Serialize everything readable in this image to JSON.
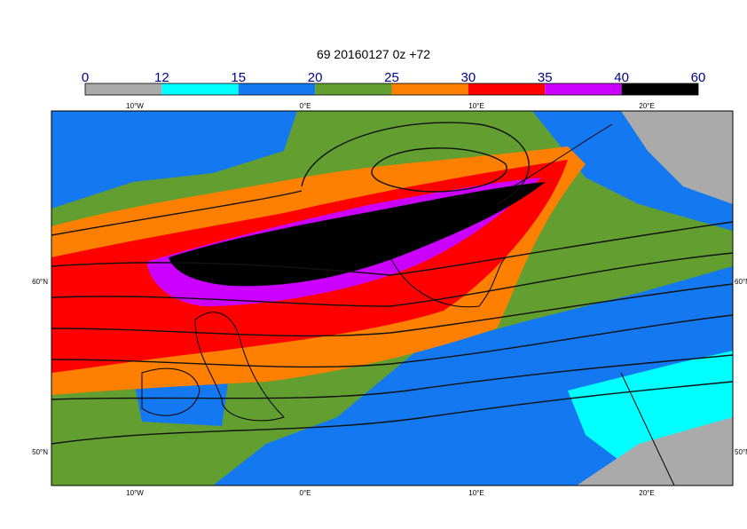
{
  "title": "69 20160127 0z +72",
  "colorbar": {
    "bounds": [
      0,
      12,
      15,
      20,
      25,
      30,
      35,
      40,
      60
    ],
    "colors": [
      "#aaaaaa",
      "#00ffff",
      "#1478f0",
      "#629f30",
      "#ff8000",
      "#ff0000",
      "#cc00ff",
      "#000000"
    ]
  },
  "lon_labels": [
    "10°W",
    "0°E",
    "10°E",
    "20°E"
  ],
  "lat_labels": [
    "60°N",
    "50°N"
  ]
}
